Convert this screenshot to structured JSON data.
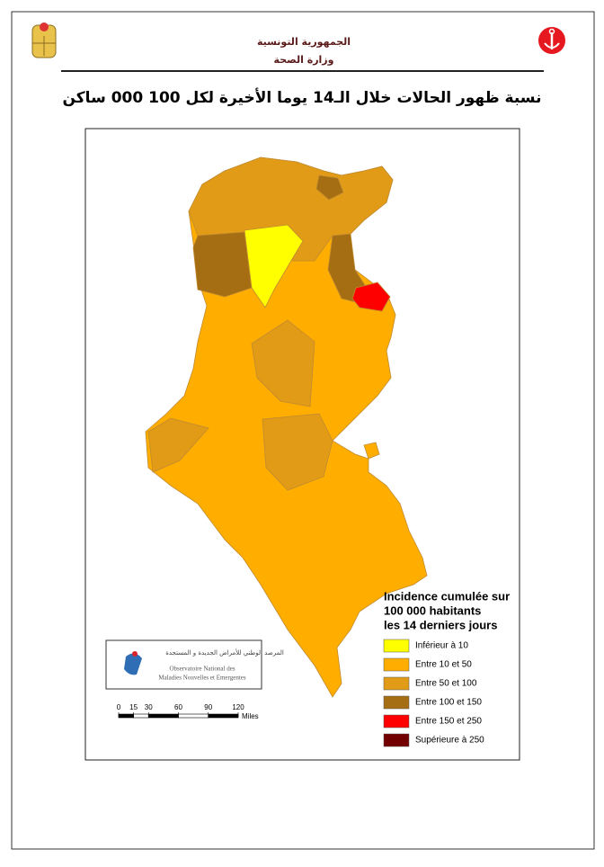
{
  "header": {
    "line1": "الجمهورية التونسية",
    "line2": "وزارة الصحة"
  },
  "title": "نسبة ظهور الحالات خلال الـ14 يوما الأخيرة لكل 100 000 ساكن",
  "legend": {
    "title": [
      "Incidence cumulée sur",
      "100 000 habitants",
      "les 14 derniers jours"
    ],
    "items": [
      {
        "label": "Inférieur à 10",
        "color": "#ffff00"
      },
      {
        "label": "Entre 10 et 50",
        "color": "#ffae00"
      },
      {
        "label": "Entre 50 et 100",
        "color": "#e19b17"
      },
      {
        "label": "Entre 100 et 150",
        "color": "#a66e12"
      },
      {
        "label": "Entre 150 et 250",
        "color": "#ff0000"
      },
      {
        "label": "Supérieure à 250",
        "color": "#730000"
      }
    ]
  },
  "scale": {
    "ticks": [
      0,
      15,
      30,
      60,
      90,
      120
    ],
    "unit": "Miles"
  },
  "logo": {
    "arabic": "المرصد الوطني للأمراض الجديدة و المستجدة",
    "line1": "Observatoire National des",
    "line2": "Maladies Nouvelles et Emergentes"
  }
}
